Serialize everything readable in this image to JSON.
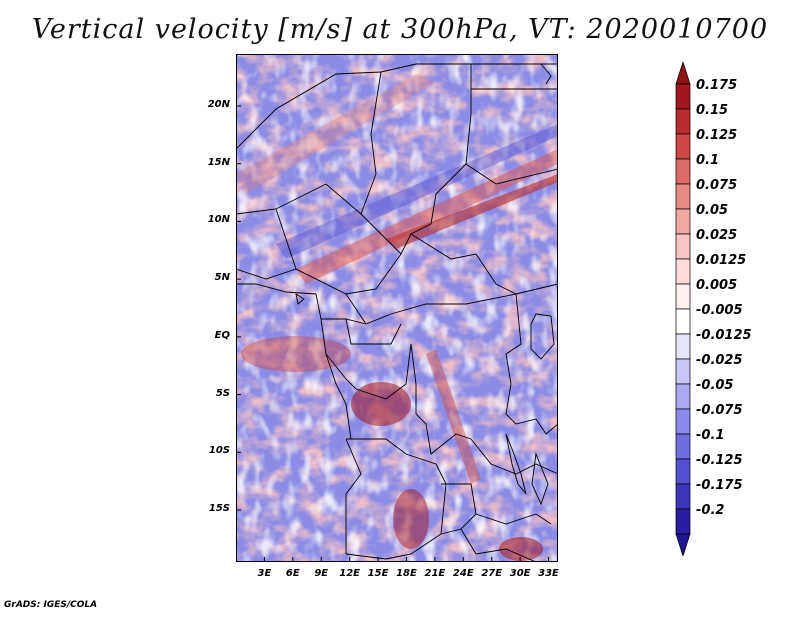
{
  "title": "Vertical velocity [m/s] at 300hPa, VT: 2020010700",
  "footer": "GrADS: IGES/COLA",
  "map": {
    "region": "Central Africa",
    "lat_range": [
      -19.5,
      24.5
    ],
    "lon_range": [
      0,
      34
    ],
    "lat_ticks": [
      {
        "label": "20N",
        "value": 20
      },
      {
        "label": "15N",
        "value": 15
      },
      {
        "label": "10N",
        "value": 10
      },
      {
        "label": "5N",
        "value": 5
      },
      {
        "label": "EQ",
        "value": 0
      },
      {
        "label": "5S",
        "value": -5
      },
      {
        "label": "10S",
        "value": -10
      },
      {
        "label": "15S",
        "value": -15
      }
    ],
    "lon_ticks": [
      {
        "label": "3E",
        "value": 3
      },
      {
        "label": "6E",
        "value": 6
      },
      {
        "label": "9E",
        "value": 9
      },
      {
        "label": "12E",
        "value": 12
      },
      {
        "label": "15E",
        "value": 15
      },
      {
        "label": "18E",
        "value": 18
      },
      {
        "label": "21E",
        "value": 21
      },
      {
        "label": "24E",
        "value": 24
      },
      {
        "label": "27E",
        "value": 27
      },
      {
        "label": "30E",
        "value": 30
      },
      {
        "label": "33E",
        "value": 33
      }
    ]
  },
  "colorbar": {
    "levels": [
      {
        "label": "0.175",
        "color": "#a31620"
      },
      {
        "label": "0.15",
        "color": "#bb2c2e"
      },
      {
        "label": "0.125",
        "color": "#cf4846"
      },
      {
        "label": "0.1",
        "color": "#de6a66"
      },
      {
        "label": "0.075",
        "color": "#e88a86"
      },
      {
        "label": "0.05",
        "color": "#f0a8a4"
      },
      {
        "label": "0.025",
        "color": "#f6c4c2"
      },
      {
        "label": "0.0125",
        "color": "#fbdcdb"
      },
      {
        "label": "0.005",
        "color": "#fdf0ef"
      },
      {
        "label": "-0.005",
        "color": "#ffffff"
      },
      {
        "label": "-0.0125",
        "color": "#e4e4fb"
      },
      {
        "label": "-0.025",
        "color": "#c7c6f6"
      },
      {
        "label": "-0.05",
        "color": "#a9a8f1"
      },
      {
        "label": "-0.075",
        "color": "#8b8aea"
      },
      {
        "label": "-0.1",
        "color": "#6f6ddf"
      },
      {
        "label": "-0.125",
        "color": "#5450cf"
      },
      {
        "label": "-0.175",
        "color": "#3d36bb"
      },
      {
        "label": "-0.2",
        "color": "#2a1ea3"
      }
    ],
    "top_arrow_color": "#8e1418",
    "bottom_arrow_color": "#1f1590"
  }
}
